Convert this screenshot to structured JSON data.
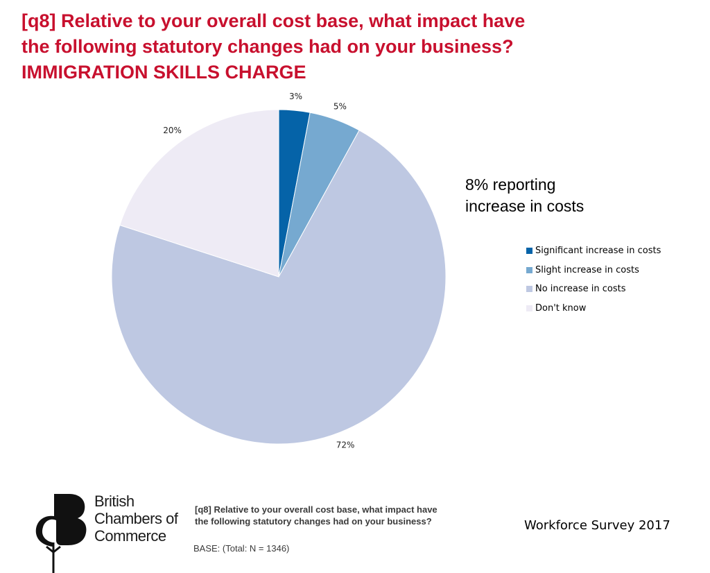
{
  "title": {
    "line1": "[q8] Relative to your overall cost base, what impact have",
    "line2": "the following statutory changes had on your business?",
    "line3": "IMMIGRATION SKILLS CHARGE"
  },
  "callout": {
    "line1": "8% reporting",
    "line2": "increase in costs"
  },
  "chart_data": {
    "type": "pie",
    "title": "",
    "categories": [
      "Significant increase in costs",
      "Slight increase in costs",
      "No increase in costs",
      "Don't know"
    ],
    "values": [
      3,
      5,
      72,
      20
    ],
    "labels": [
      "3%",
      "5%",
      "72%",
      "20%"
    ],
    "colors": [
      "#0563a8",
      "#76a9d0",
      "#bec8e2",
      "#eeebf5"
    ],
    "legend_position": "right"
  },
  "footer": {
    "question_line1": "[q8] Relative to your overall cost base, what impact have",
    "question_line2": "the following statutory changes had on your business?",
    "base": "BASE: (Total: N = 1346)",
    "survey": "Workforce Survey 2017",
    "logo_line1": "British",
    "logo_line2": "Chambers of",
    "logo_line3": "Commerce"
  }
}
